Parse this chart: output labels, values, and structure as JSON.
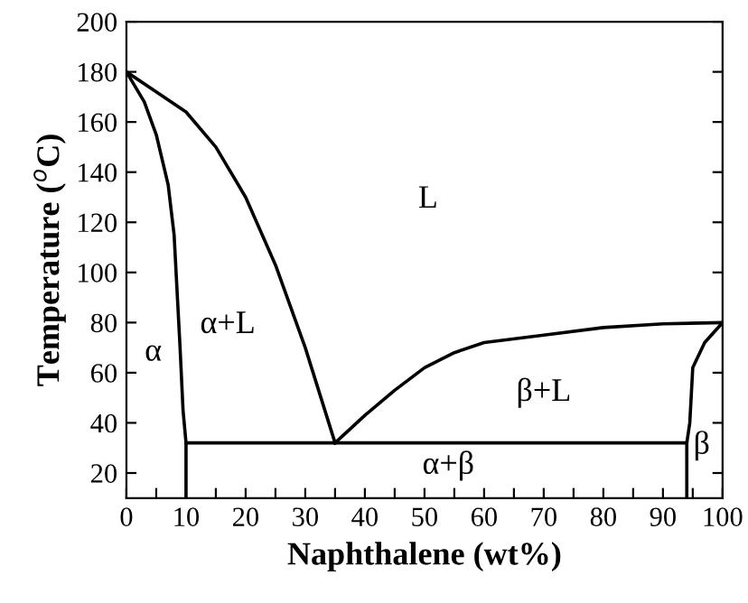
{
  "chart_data": {
    "type": "line",
    "xlabel": "Naphthalene (wt%)",
    "ylabel": "Temperature ($^{o}$C)",
    "xlim": [
      0,
      100
    ],
    "ylim": [
      10,
      200
    ],
    "xticks": [
      0,
      {
        "value": 5,
        "label": null
      },
      10,
      {
        "value": 15,
        "label": null
      },
      20,
      {
        "value": 25,
        "label": null
      },
      30,
      {
        "value": 35,
        "label": null
      },
      40,
      {
        "value": 45,
        "label": null
      },
      50,
      {
        "value": 55,
        "label": null
      },
      60,
      {
        "value": 65,
        "label": null
      },
      70,
      {
        "value": 75,
        "label": null
      },
      80,
      {
        "value": 85,
        "label": null
      },
      90,
      {
        "value": 95,
        "label": null
      },
      100
    ],
    "yticks": [
      20,
      40,
      60,
      80,
      100,
      120,
      140,
      160,
      180,
      200
    ],
    "grid": false,
    "legend": false,
    "marker": "none",
    "line_style": "solid",
    "series": [
      {
        "color": "#000000",
        "x": [
          0,
          5,
          10,
          15,
          20,
          25,
          30,
          35
        ],
        "values": [
          180,
          172,
          164,
          150,
          130,
          103,
          70,
          32
        ]
      },
      {
        "color": "#000000",
        "x": [
          0,
          3,
          5,
          7,
          8,
          9,
          9.5,
          10,
          10
        ],
        "values": [
          180,
          168,
          155,
          135,
          115,
          70,
          45,
          32,
          10
        ]
      },
      {
        "color": "#000000",
        "x": [
          10,
          94
        ],
        "values": [
          32,
          32
        ]
      },
      {
        "color": "#000000",
        "x": [
          35,
          40,
          45,
          50,
          55,
          60,
          70,
          80,
          90,
          100
        ],
        "values": [
          32,
          43,
          53,
          62,
          68,
          72,
          75,
          78,
          79.5,
          80
        ]
      },
      {
        "color": "#000000",
        "x": [
          100,
          97,
          95,
          94.5,
          94,
          94
        ],
        "values": [
          80,
          72,
          62,
          40,
          32,
          10
        ]
      }
    ],
    "annotations": [
      "L",
      "α",
      "α+L",
      "β+L",
      "α+β",
      "β"
    ]
  }
}
